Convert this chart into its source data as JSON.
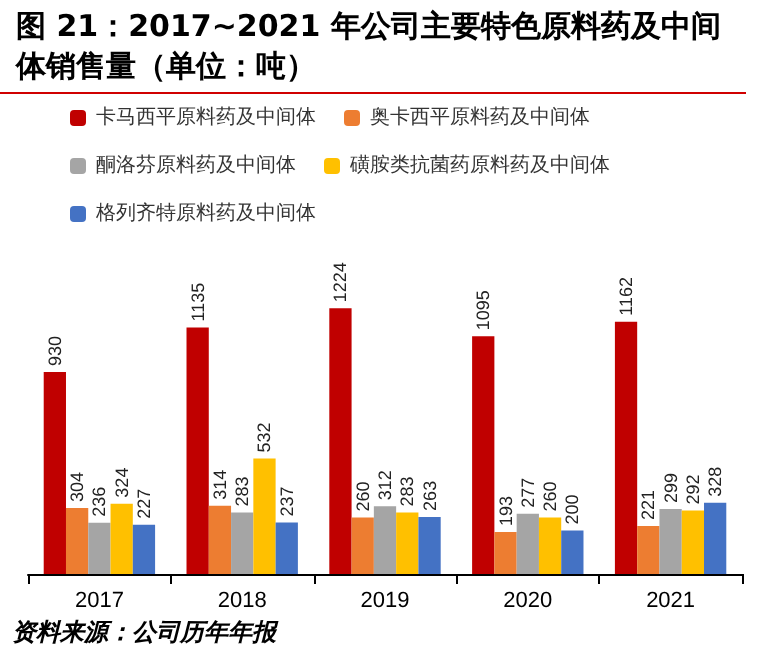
{
  "chart_data": {
    "type": "bar",
    "title": "图 21：2017~2021 年公司主要特色原料药及中间体销售量（单位：吨）",
    "categories": [
      "2017",
      "2018",
      "2019",
      "2020",
      "2021"
    ],
    "series": [
      {
        "name": "卡马西平原料药及中间体",
        "color": "#c00000",
        "values": [
          930,
          1135,
          1224,
          1095,
          1162
        ]
      },
      {
        "name": "奥卡西平原料药及中间体",
        "color": "#ed7d31",
        "values": [
          304,
          314,
          260,
          193,
          221
        ]
      },
      {
        "name": "酮洛芬原料药及中间体",
        "color": "#a5a5a5",
        "values": [
          236,
          283,
          312,
          277,
          299
        ]
      },
      {
        "name": "磺胺类抗菌药原料药及中间体",
        "color": "#ffc000",
        "values": [
          324,
          532,
          283,
          260,
          292
        ]
      },
      {
        "name": "格列齐特原料药及中间体",
        "color": "#4472c4",
        "values": [
          227,
          237,
          263,
          200,
          328
        ]
      }
    ],
    "data_labels": true,
    "legend": "top",
    "grid": false,
    "tick_labels": "x",
    "annotations": [
      "资料来源：公司历年年报"
    ]
  }
}
